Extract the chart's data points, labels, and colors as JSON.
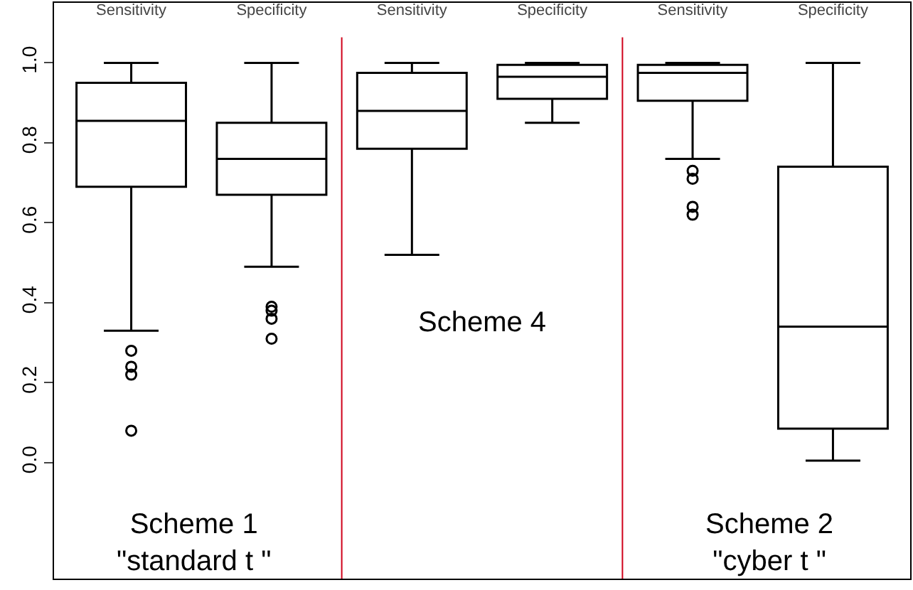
{
  "chart_data": {
    "type": "box",
    "categories": [
      "Sensitivity",
      "Specificity",
      "Sensitivity",
      "Specificity",
      "Sensitivity",
      "Specificity"
    ],
    "boxes": [
      {
        "low": 0.33,
        "q1": 0.69,
        "median": 0.855,
        "q3": 0.95,
        "high": 1.0,
        "outliers": [
          0.28,
          0.24,
          0.22,
          0.08
        ]
      },
      {
        "low": 0.49,
        "q1": 0.67,
        "median": 0.76,
        "q3": 0.85,
        "high": 1.0,
        "outliers": [
          0.39,
          0.38,
          0.36,
          0.31
        ]
      },
      {
        "low": 0.52,
        "q1": 0.785,
        "median": 0.88,
        "q3": 0.975,
        "high": 1.0
      },
      {
        "low": 0.85,
        "q1": 0.91,
        "median": 0.965,
        "q3": 0.995,
        "high": 1.0
      },
      {
        "low": 0.76,
        "q1": 0.905,
        "median": 0.975,
        "q3": 0.995,
        "high": 1.0,
        "outliers": [
          0.73,
          0.71,
          0.64,
          0.62
        ]
      },
      {
        "low": 0.005,
        "q1": 0.085,
        "median": 0.34,
        "q3": 0.74,
        "high": 1.0
      }
    ],
    "color": "#000000",
    "ylim": [
      -0.29,
      1.15
    ],
    "yticks": [
      {
        "value": 0,
        "label": "0.0"
      },
      0.2,
      0.4,
      0.6,
      0.8,
      {
        "value": 1,
        "label": "1.0"
      }
    ],
    "annotations": [
      "Scheme 1\n\"standard t \"",
      "Scheme 4",
      "Scheme 2\n\"cyber t \""
    ],
    "marker": "circle"
  }
}
